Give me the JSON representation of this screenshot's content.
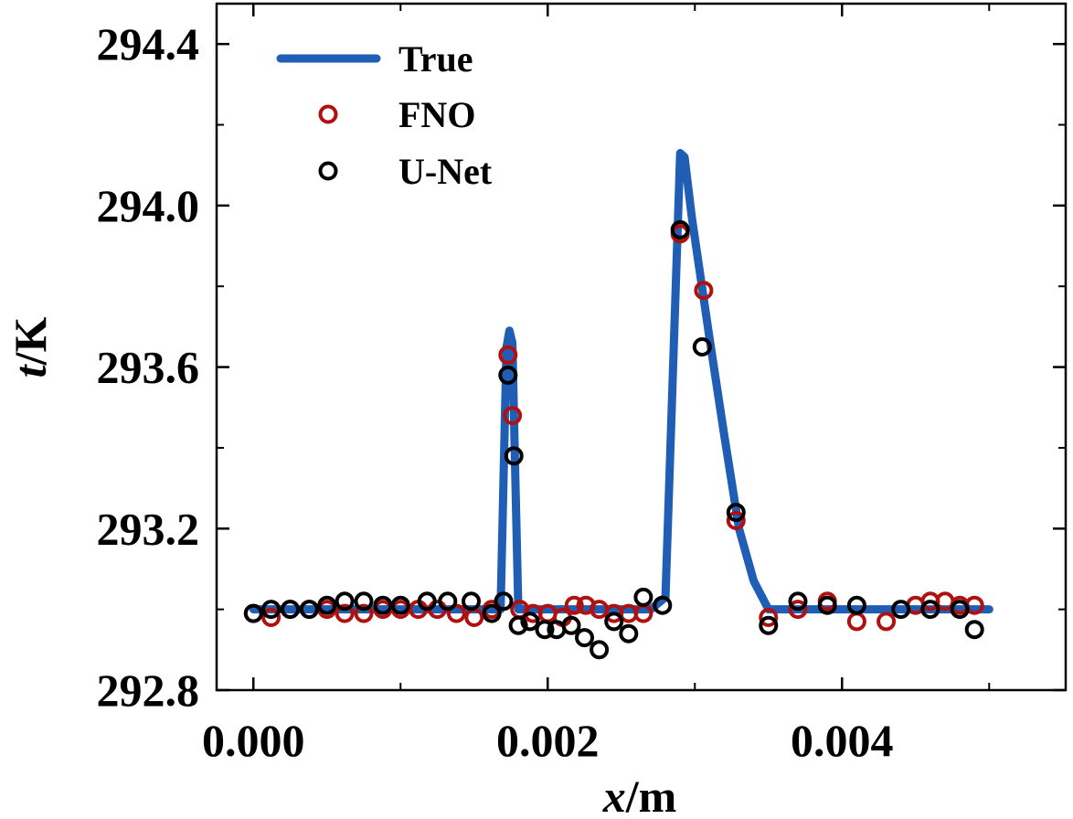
{
  "chart_data": {
    "type": "line",
    "xlabel": {
      "var": "x",
      "unit": "/m"
    },
    "ylabel": {
      "var": "t",
      "unit": "/K"
    },
    "xlim": [
      -0.00025,
      0.00552
    ],
    "ylim": [
      292.8,
      294.5
    ],
    "xticks": [
      0.0,
      0.002,
      0.004
    ],
    "xtick_labels": [
      "0.000",
      "0.002",
      "0.004"
    ],
    "x_minor_ticks": [
      0.001,
      0.003,
      0.005
    ],
    "yticks": [
      292.8,
      293.2,
      293.6,
      294.0,
      294.4
    ],
    "ytick_labels": [
      "292.8",
      "293.2",
      "293.6",
      "294.0",
      "294.4"
    ],
    "y_minor_ticks": [
      293.0,
      293.4,
      293.8,
      294.2
    ],
    "legend": {
      "position": "upper-left",
      "entries": [
        "True",
        "FNO",
        "U-Net"
      ]
    },
    "colors": {
      "True": "#1f5eb4",
      "FNO": "#b01010",
      "U-Net": "#000000"
    },
    "series": [
      {
        "name": "True",
        "style": "line",
        "x": [
          0.0,
          0.0004,
          0.0008,
          0.0012,
          0.0016,
          0.00168,
          0.00172,
          0.00174,
          0.00176,
          0.00178,
          0.0018,
          0.0019,
          0.0022,
          0.0025,
          0.0027,
          0.0028,
          0.0029,
          0.00293,
          0.00298,
          0.0031,
          0.0032,
          0.0033,
          0.0034,
          0.0035,
          0.0037,
          0.004,
          0.0045,
          0.005
        ],
        "y": [
          293.0,
          293.0,
          293.0,
          293.0,
          293.0,
          293.0,
          293.65,
          293.69,
          293.66,
          293.33,
          293.0,
          293.0,
          293.0,
          293.0,
          293.0,
          293.03,
          294.13,
          294.12,
          293.97,
          293.67,
          293.43,
          293.2,
          293.07,
          293.0,
          293.0,
          293.0,
          293.0,
          293.0
        ]
      },
      {
        "name": "FNO",
        "style": "scatter",
        "x": [
          0.0,
          0.00012,
          0.00025,
          0.00038,
          0.0005,
          0.00062,
          0.00075,
          0.00088,
          0.001,
          0.00112,
          0.00125,
          0.00138,
          0.0015,
          0.00162,
          0.00173,
          0.00176,
          0.00181,
          0.0019,
          0.002,
          0.0021,
          0.00218,
          0.00226,
          0.00235,
          0.00245,
          0.00255,
          0.00265,
          0.0029,
          0.00306,
          0.00328,
          0.0035,
          0.0037,
          0.0039,
          0.0041,
          0.0043,
          0.0045,
          0.0046,
          0.0047,
          0.0048,
          0.0049
        ],
        "y": [
          292.99,
          292.98,
          293.0,
          293.0,
          293.0,
          292.99,
          292.99,
          293.0,
          293.0,
          293.0,
          293.0,
          292.99,
          292.98,
          293.0,
          293.63,
          293.48,
          293.0,
          292.99,
          292.99,
          292.98,
          293.01,
          293.01,
          293.0,
          292.99,
          292.99,
          292.99,
          293.93,
          293.79,
          293.22,
          292.98,
          293.0,
          293.02,
          292.97,
          292.97,
          293.01,
          293.02,
          293.02,
          293.01,
          293.01
        ]
      },
      {
        "name": "U-Net",
        "style": "scatter",
        "x": [
          0.0,
          0.00012,
          0.00025,
          0.00038,
          0.0005,
          0.00062,
          0.00075,
          0.00088,
          0.001,
          0.00118,
          0.00132,
          0.00148,
          0.00162,
          0.0017,
          0.00173,
          0.00177,
          0.0018,
          0.00188,
          0.00198,
          0.00206,
          0.00216,
          0.00225,
          0.00235,
          0.00245,
          0.00255,
          0.00265,
          0.00278,
          0.0029,
          0.00305,
          0.00328,
          0.0035,
          0.0037,
          0.0039,
          0.0041,
          0.0044,
          0.0046,
          0.0048,
          0.0049
        ],
        "y": [
          292.99,
          293.0,
          293.0,
          293.0,
          293.01,
          293.02,
          293.02,
          293.01,
          293.01,
          293.02,
          293.02,
          293.02,
          292.99,
          293.02,
          293.58,
          293.38,
          292.96,
          292.97,
          292.95,
          292.95,
          292.96,
          292.93,
          292.9,
          292.97,
          292.94,
          293.03,
          293.01,
          293.94,
          293.65,
          293.24,
          292.96,
          293.02,
          293.01,
          293.01,
          293.0,
          293.0,
          293.0,
          292.95
        ]
      }
    ]
  }
}
